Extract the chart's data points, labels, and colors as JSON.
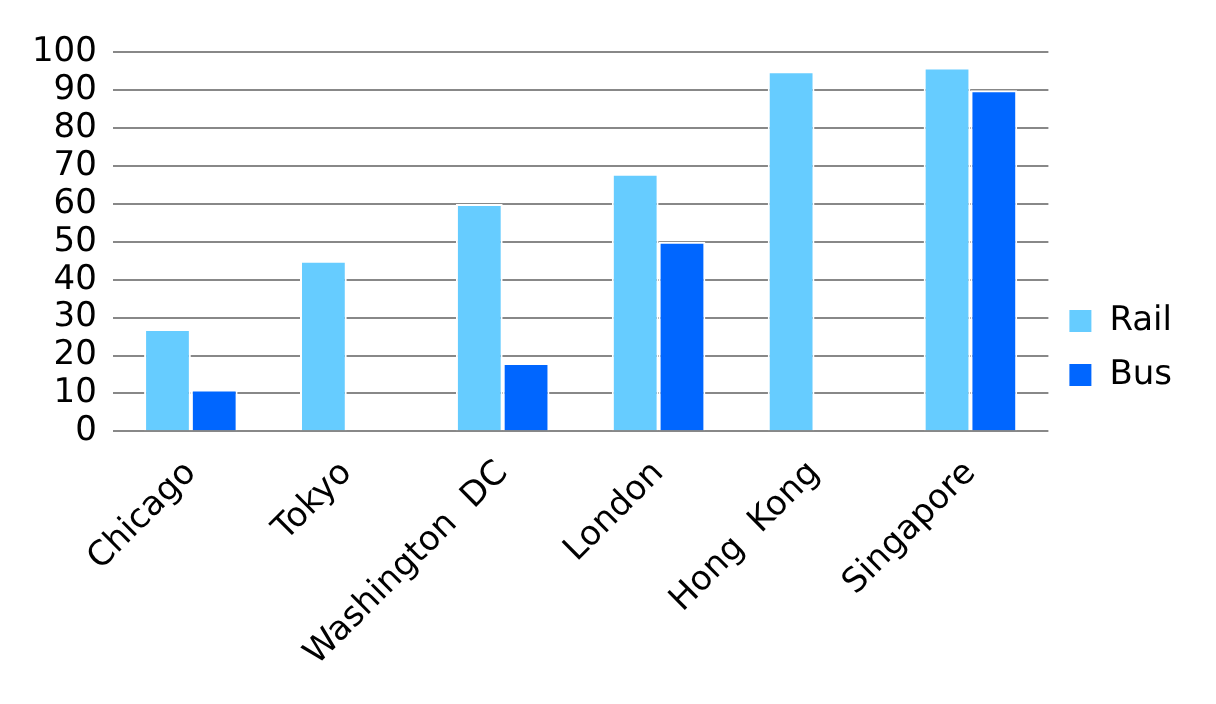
{
  "chart_data": {
    "type": "bar",
    "categories": [
      "Chicago",
      "Tokyo",
      "Washington  DC",
      "London",
      "Hong  Kong",
      "Singapore"
    ],
    "series": [
      {
        "name": "Rail",
        "color": "#66ccff",
        "values": [
          27,
          45,
          60,
          68,
          95,
          96
        ]
      },
      {
        "name": "Bus",
        "color": "#0066ff",
        "values": [
          11,
          null,
          18,
          50,
          null,
          90
        ]
      }
    ],
    "ylim": [
      0,
      100
    ],
    "yticks": [
      0,
      10,
      20,
      30,
      40,
      50,
      60,
      70,
      80,
      90,
      100
    ],
    "grid": "y",
    "legend": "right"
  }
}
